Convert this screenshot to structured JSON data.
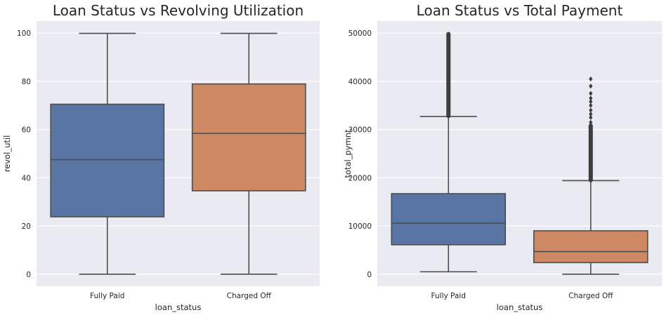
{
  "chart_data": [
    {
      "type": "box",
      "title": "Loan Status vs Revolving Utilization",
      "xlabel": "loan_status",
      "ylabel": "revol_util",
      "ylim": [
        -5,
        105
      ],
      "yticks": [
        0,
        20,
        40,
        60,
        80,
        100
      ],
      "yticklabels": [
        "0",
        "20",
        "40",
        "60",
        "80",
        "100"
      ],
      "grid": true,
      "categories": [
        "Fully Paid",
        "Charged Off"
      ],
      "boxes": [
        {
          "category": "Fully Paid",
          "whisker_low": 0,
          "q1": 23.8,
          "median": 47.5,
          "q3": 70.5,
          "whisker_high": 99.9,
          "outliers": [],
          "color": "#5875a4"
        },
        {
          "category": "Charged Off",
          "whisker_low": 0,
          "q1": 34.6,
          "median": 58.4,
          "q3": 78.9,
          "whisker_high": 99.9,
          "outliers": [],
          "color": "#cc8963"
        }
      ]
    },
    {
      "type": "box",
      "title": "Loan Status vs Total Payment",
      "xlabel": "loan_status",
      "ylabel": "total_pymnt",
      "ylim": [
        -2500,
        52500
      ],
      "yticks": [
        0,
        10000,
        20000,
        30000,
        40000,
        50000
      ],
      "yticklabels": [
        "0",
        "10000",
        "20000",
        "30000",
        "40000",
        "50000"
      ],
      "grid": true,
      "categories": [
        "Fully Paid",
        "Charged Off"
      ],
      "boxes": [
        {
          "category": "Fully Paid",
          "whisker_low": 500,
          "q1": 6100,
          "median": 10600,
          "q3": 16700,
          "whisker_high": 32700,
          "outlier_range": [
            32800,
            49800
          ],
          "outliers": [],
          "color": "#5875a4"
        },
        {
          "category": "Charged Off",
          "whisker_low": 0,
          "q1": 2400,
          "median": 4700,
          "q3": 9000,
          "whisker_high": 19400,
          "outlier_range": [
            19500,
            30800
          ],
          "outliers": [
            31500,
            32500,
            33200,
            34000,
            35000,
            35800,
            36500,
            37500,
            39000,
            40500
          ],
          "color": "#cc8963"
        }
      ]
    }
  ]
}
